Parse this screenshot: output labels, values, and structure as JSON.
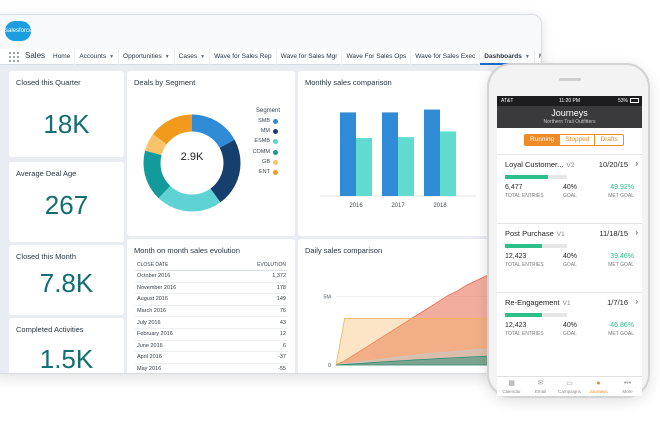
{
  "brand": {
    "logo_text": "salesforce"
  },
  "nav": {
    "app_name": "Sales",
    "tabs": [
      {
        "label": "Home",
        "has_menu": false
      },
      {
        "label": "Accounts",
        "has_menu": true
      },
      {
        "label": "Opportunities",
        "has_menu": true
      },
      {
        "label": "Cases",
        "has_menu": true
      },
      {
        "label": "Wave for Sales Rep",
        "has_menu": false
      },
      {
        "label": "Wave for Sales Mgr",
        "has_menu": false
      },
      {
        "label": "Wave For Sales Ops",
        "has_menu": false
      },
      {
        "label": "Wave for Sales Exec",
        "has_menu": false
      },
      {
        "label": "Dashboards",
        "has_menu": true,
        "active": true
      },
      {
        "label": "More",
        "has_menu": true
      }
    ]
  },
  "kpis": [
    {
      "title": "Closed this Quarter",
      "value": "18K"
    },
    {
      "title": "Average Deal Age",
      "value": "267"
    },
    {
      "title": "Closed this Month",
      "value": "7.8K"
    },
    {
      "title": "Completed Activities",
      "value": "1.5K"
    }
  ],
  "deals_by_segment": {
    "title": "Deals by Segment",
    "center_label": "2.9K",
    "legend_title": "Segment",
    "segments": [
      {
        "name": "SMB",
        "color": "#2f8bd6",
        "value": 17
      },
      {
        "name": "MM",
        "color": "#173f6e",
        "value": 23
      },
      {
        "name": "ESMB",
        "color": "#5fd3d3",
        "value": 22
      },
      {
        "name": "COMM",
        "color": "#139a9a",
        "value": 17
      },
      {
        "name": "GB",
        "color": "#f7c469",
        "value": 6
      },
      {
        "name": "ENT",
        "color": "#f29a1b",
        "value": 15
      }
    ]
  },
  "monthly_sales": {
    "title": "Monthly sales comparison",
    "chart_data": {
      "type": "bar",
      "categories": [
        "2016",
        "2017",
        "2018"
      ],
      "series": [
        {
          "color": "#2f8bd6",
          "values": [
            88,
            88,
            91
          ]
        },
        {
          "color": "#5fdccf",
          "values": [
            61,
            62,
            68
          ]
        }
      ],
      "ylim": [
        0,
        100
      ]
    }
  },
  "month_on_month": {
    "title": "Month on month sales evolution",
    "columns": [
      "CLOSE DATE",
      "EVOLUTION"
    ],
    "rows": [
      [
        "October 2016",
        "1,372"
      ],
      [
        "November 2016",
        "178"
      ],
      [
        "August 2016",
        "149"
      ],
      [
        "March 2016",
        "76"
      ],
      [
        "July 2016",
        "43"
      ],
      [
        "February 2016",
        "12"
      ],
      [
        "June 2016",
        "6"
      ],
      [
        "April 2016",
        "-37"
      ],
      [
        "May 2016",
        "-55"
      ]
    ]
  },
  "daily_sales": {
    "title": "Daily sales comparison",
    "chart_data": {
      "type": "area",
      "ytick_labels": [
        "5M",
        "0"
      ],
      "ylim": [
        0,
        7000000
      ],
      "x": [
        0,
        1,
        2,
        3,
        4,
        5,
        6,
        7,
        8,
        9,
        10,
        11,
        12,
        13,
        14,
        15,
        16,
        17,
        18
      ],
      "series": [
        {
          "color": "#e86a4f",
          "values": [
            0,
            300000,
            700000,
            1100000,
            1500000,
            1900000,
            2300000,
            2700000,
            3100000,
            3500000,
            3900000,
            4300000,
            4700000,
            5100000,
            5400000,
            5800000,
            6100000,
            6400000,
            6700000
          ]
        },
        {
          "color": "#f3b45b",
          "values": [
            0,
            3400000,
            3400000,
            3400000,
            3400000,
            3400000,
            3400000,
            3400000,
            3400000,
            3400000,
            3400000,
            3400000,
            3400000,
            3400000,
            3400000,
            3400000,
            3400000,
            3400000,
            3400000
          ]
        },
        {
          "color": "#c9c9c9",
          "values": [
            0,
            80000,
            160000,
            250000,
            330000,
            400000,
            480000,
            560000,
            630000,
            700000,
            780000,
            850000,
            900000,
            950000,
            1000000,
            1050000,
            1100000,
            1150000,
            1200000
          ]
        },
        {
          "color": "#2f8f7a",
          "values": [
            0,
            40000,
            80000,
            120000,
            170000,
            210000,
            250000,
            290000,
            330000,
            370000,
            400000,
            440000,
            480000,
            510000,
            540000,
            570000,
            600000,
            630000,
            660000
          ]
        }
      ]
    }
  },
  "phone": {
    "status": {
      "carrier": "AT&T",
      "time": "11:20 PM",
      "battery": "53%"
    },
    "title": "Journeys",
    "subtitle": "Northern Trail Outfitters",
    "segments": [
      {
        "label": "Running",
        "active": true
      },
      {
        "label": "Stopped",
        "active": false
      },
      {
        "label": "Drafts",
        "active": false
      }
    ],
    "journeys": [
      {
        "name": "Loyal Customer...",
        "version": "V2",
        "date": "10/20/15",
        "progress": 0.7,
        "entries": "6,477",
        "entries_label": "TOTAL ENTRIES",
        "goal": "40%",
        "goal_label": "GOAL",
        "met": "49.92%",
        "met_label": "MET GOAL"
      },
      {
        "name": "Post Purchase",
        "version": "V1",
        "date": "11/18/15",
        "progress": 0.6,
        "entries": "12,423",
        "entries_label": "TOTAL ENTRIES",
        "goal": "40%",
        "goal_label": "GOAL",
        "met": "39.46%",
        "met_label": "MET GOAL"
      },
      {
        "name": "Re-Engagement",
        "version": "V1",
        "date": "1/7/16",
        "progress": 0.6,
        "entries": "12,423",
        "entries_label": "TOTAL ENTRIES",
        "goal": "40%",
        "goal_label": "GOAL",
        "met": "46.86%",
        "met_label": "MET GOAL"
      }
    ],
    "tabbar": [
      {
        "label": "Calendar",
        "icon": "calendar-icon",
        "glyph": "▦",
        "active": false
      },
      {
        "label": "Email",
        "icon": "email-icon",
        "glyph": "✉",
        "active": false
      },
      {
        "label": "Campaigns",
        "icon": "folder-icon",
        "glyph": "▭",
        "active": false
      },
      {
        "label": "Journeys",
        "icon": "journeys-icon",
        "glyph": "●",
        "active": true
      },
      {
        "label": "More",
        "icon": "more-icon",
        "glyph": "•••",
        "active": false
      }
    ]
  }
}
